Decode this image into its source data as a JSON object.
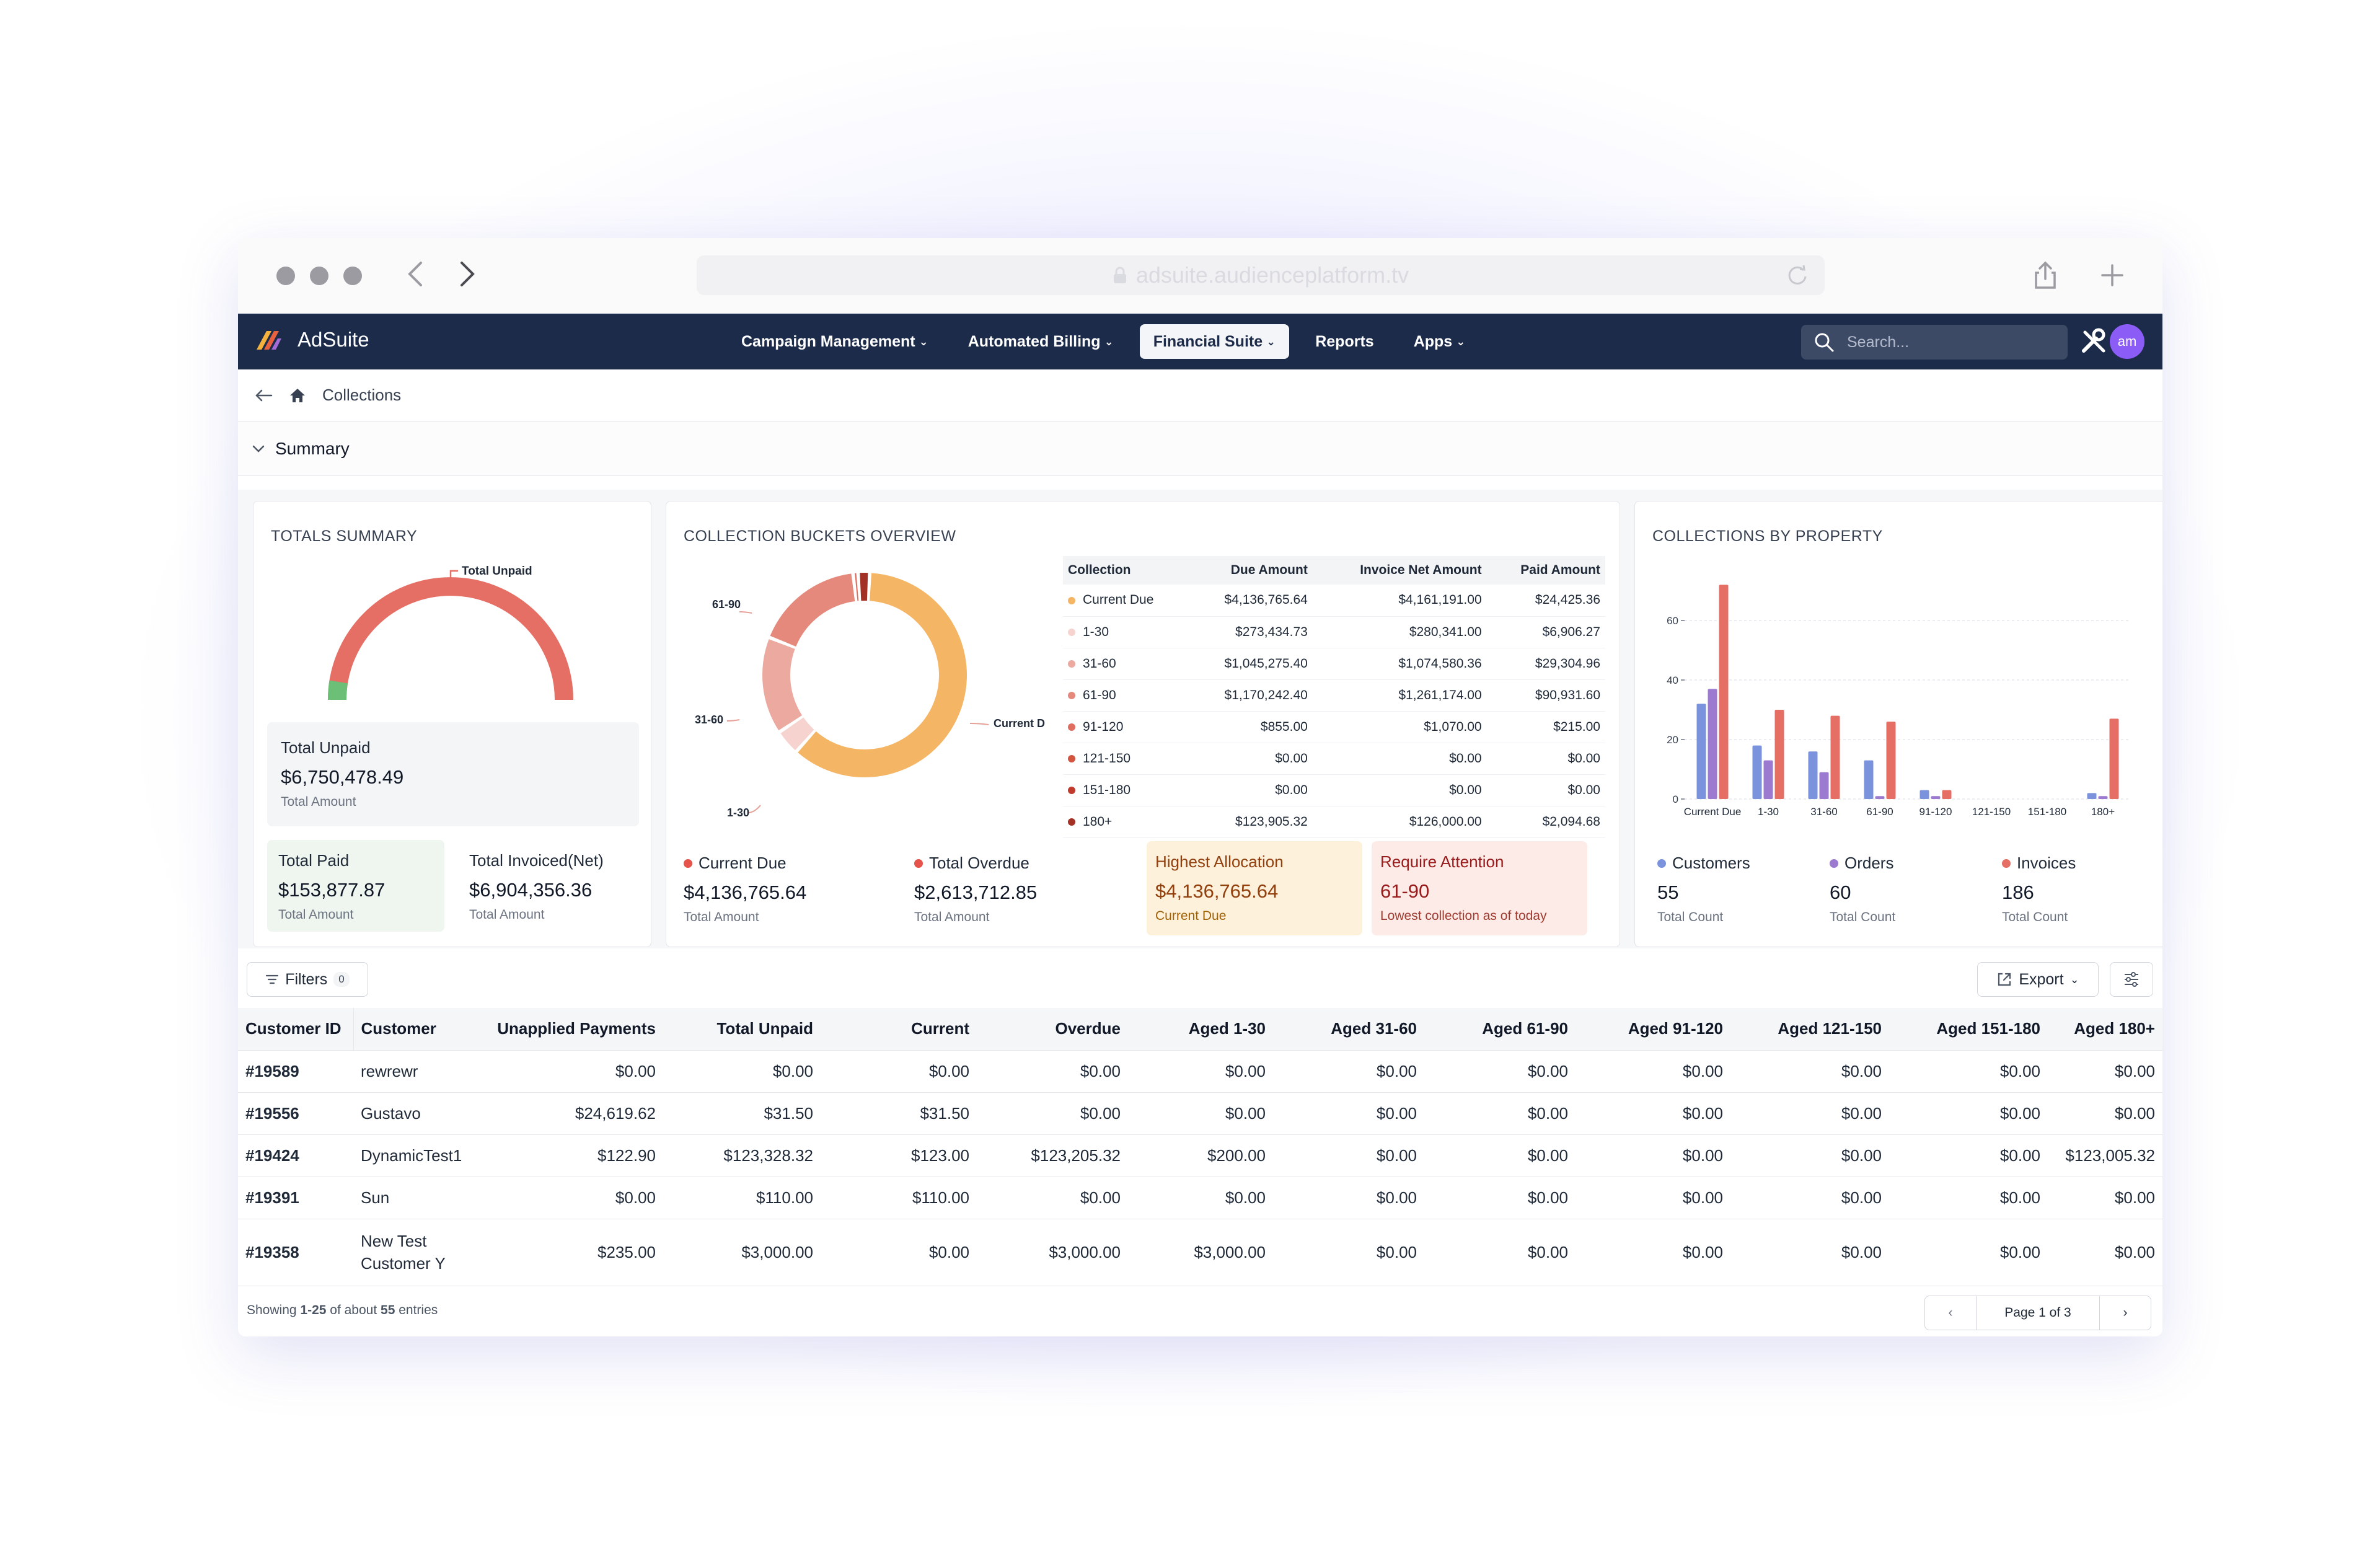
{
  "browser": {
    "url": "adsuite.audienceplatform.tv"
  },
  "app": {
    "brand": "AdSuite",
    "avatar_initials": "am"
  },
  "nav": {
    "items": [
      {
        "label": "Campaign Management",
        "dropdown": true
      },
      {
        "label": "Automated Billing",
        "dropdown": true
      },
      {
        "label": "Financial Suite",
        "dropdown": true,
        "active": true
      },
      {
        "label": "Reports",
        "dropdown": false
      },
      {
        "label": "Apps",
        "dropdown": true
      }
    ],
    "search_placeholder": "Search..."
  },
  "breadcrumb": {
    "page": "Collections"
  },
  "summary": {
    "label": "Summary"
  },
  "totals": {
    "title": "TOTALS SUMMARY",
    "gauge_label": "Total Unpaid",
    "unpaid_label": "Total Unpaid",
    "unpaid_value": "$6,750,478.49",
    "unpaid_sub": "Total Amount",
    "paid_label": "Total Paid",
    "paid_value": "$153,877.87",
    "paid_sub": "Total Amount",
    "invoiced_label": "Total Invoiced(Net)",
    "invoiced_value": "$6,904,356.36",
    "invoiced_sub": "Total Amount"
  },
  "buckets": {
    "title": "COLLECTION BUCKETS OVERVIEW",
    "donut_labels": {
      "d6190": "61-90",
      "d3160": "31-60",
      "d130": "1-30",
      "dcur": "Current D"
    },
    "headers": {
      "c0": "Collection",
      "c1": "Due Amount",
      "c2": "Invoice Net Amount",
      "c3": "Paid Amount"
    },
    "rows": [
      {
        "name": "Current Due",
        "due": "$4,136,765.64",
        "net": "$4,161,191.00",
        "paid": "$24,425.36",
        "color": "#f4b565"
      },
      {
        "name": "1-30",
        "due": "$273,434.73",
        "net": "$280,341.00",
        "paid": "$6,906.27",
        "color": "#f6d3cf"
      },
      {
        "name": "31-60",
        "due": "$1,045,275.40",
        "net": "$1,074,580.36",
        "paid": "$29,304.96",
        "color": "#eba9a0"
      },
      {
        "name": "61-90",
        "due": "$1,170,242.40",
        "net": "$1,261,174.00",
        "paid": "$90,931.60",
        "color": "#e4897c"
      },
      {
        "name": "91-120",
        "due": "$855.00",
        "net": "$1,070.00",
        "paid": "$215.00",
        "color": "#e06e60"
      },
      {
        "name": "121-150",
        "due": "$0.00",
        "net": "$0.00",
        "paid": "$0.00",
        "color": "#d4553f"
      },
      {
        "name": "151-180",
        "due": "$0.00",
        "net": "$0.00",
        "paid": "$0.00",
        "color": "#c0392b"
      },
      {
        "name": "180+",
        "due": "$123,905.32",
        "net": "$126,000.00",
        "paid": "$2,094.68",
        "color": "#a33025"
      }
    ],
    "current_label": "Current Due",
    "current_value": "$4,136,765.64",
    "current_sub": "Total Amount",
    "overdue_label": "Total Overdue",
    "overdue_value": "$2,613,712.85",
    "overdue_sub": "Total Amount",
    "highest_label": "Highest Allocation",
    "highest_value": "$4,136,765.64",
    "highest_sub": "Current Due",
    "attention_label": "Require Attention",
    "attention_value": "61-90",
    "attention_sub": "Lowest collection as of today"
  },
  "property": {
    "title": "COLLECTIONS BY PROPERTY",
    "customers_label": "Customers",
    "customers_value": "55",
    "customers_sub": "Total Count",
    "orders_label": "Orders",
    "orders_value": "60",
    "orders_sub": "Total Count",
    "invoices_label": "Invoices",
    "invoices_value": "186",
    "invoices_sub": "Total Count"
  },
  "chart_data": {
    "type": "bar",
    "title": "COLLECTIONS BY PROPERTY",
    "categories": [
      "Current Due",
      "1-30",
      "31-60",
      "61-90",
      "91-120",
      "121-150",
      "151-180",
      "180+"
    ],
    "series": [
      {
        "name": "Customers",
        "color": "#7b93dc",
        "values": [
          32,
          18,
          16,
          13,
          3,
          0,
          0,
          2
        ]
      },
      {
        "name": "Orders",
        "color": "#9b7ad0",
        "values": [
          37,
          13,
          9,
          1,
          1,
          0,
          0,
          1
        ]
      },
      {
        "name": "Invoices",
        "color": "#e66f65",
        "values": [
          72,
          30,
          28,
          26,
          3,
          0,
          0,
          27
        ]
      }
    ],
    "yticks": [
      "0",
      "20",
      "40",
      "60"
    ],
    "ylim": [
      0,
      75
    ],
    "grid": true
  },
  "toolbar": {
    "filters_label": "Filters",
    "filters_count": "0",
    "export_label": "Export"
  },
  "table": {
    "headers": [
      "Customer ID",
      "Customer",
      "Unapplied Payments",
      "Total Unpaid",
      "Current",
      "Overdue",
      "Aged 1-30",
      "Aged 31-60",
      "Aged 61-90",
      "Aged 91-120",
      "Aged 121-150",
      "Aged 151-180",
      "Aged 180+"
    ],
    "rows": [
      {
        "id": "#19589",
        "customer": "rewrewr",
        "cells": [
          "$0.00",
          "$0.00",
          "$0.00",
          "$0.00",
          "$0.00",
          "$0.00",
          "$0.00",
          "$0.00",
          "$0.00",
          "$0.00",
          "$0.00"
        ]
      },
      {
        "id": "#19556",
        "customer": "Gustavo",
        "cells": [
          "$24,619.62",
          "$31.50",
          "$31.50",
          "$0.00",
          "$0.00",
          "$0.00",
          "$0.00",
          "$0.00",
          "$0.00",
          "$0.00",
          "$0.00"
        ]
      },
      {
        "id": "#19424",
        "customer": "DynamicTest1",
        "cells": [
          "$122.90",
          "$123,328.32",
          "$123.00",
          "$123,205.32",
          "$200.00",
          "$0.00",
          "$0.00",
          "$0.00",
          "$0.00",
          "$0.00",
          "$123,005.32"
        ]
      },
      {
        "id": "#19391",
        "customer": "Sun",
        "cells": [
          "$0.00",
          "$110.00",
          "$110.00",
          "$0.00",
          "$0.00",
          "$0.00",
          "$0.00",
          "$0.00",
          "$0.00",
          "$0.00",
          "$0.00"
        ]
      },
      {
        "id": "#19358",
        "customer": "New Test Customer Y",
        "cells": [
          "$235.00",
          "$3,000.00",
          "$0.00",
          "$3,000.00",
          "$3,000.00",
          "$0.00",
          "$0.00",
          "$0.00",
          "$0.00",
          "$0.00",
          "$0.00"
        ]
      }
    ]
  },
  "footer": {
    "showing_prefix": "Showing",
    "range": "1-25",
    "of_about": "of about",
    "total": "55",
    "entries": "entries",
    "page_label": "Page 1 of 3"
  }
}
